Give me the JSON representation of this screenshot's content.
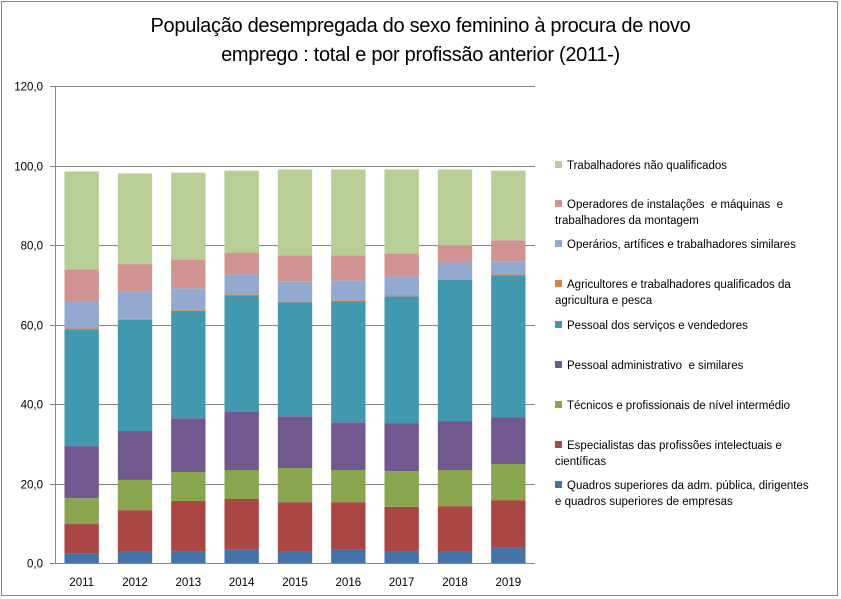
{
  "chart_data": {
    "type": "bar",
    "stacked": true,
    "title": "População desempregada do sexo feminino à procura de novo emprego : total e por profissão anterior (2011-)",
    "title_lines": [
      "População desempregada do sexo feminino à procura de novo",
      "emprego : total e por profissão anterior (2011-)"
    ],
    "xlabel": "",
    "ylabel": "",
    "ylim": [
      0,
      120
    ],
    "yticks": [
      0,
      20,
      40,
      60,
      80,
      100,
      120
    ],
    "ytick_labels": [
      "0,0",
      "20,0",
      "40,0",
      "60,0",
      "80,0",
      "100,0",
      "120,0"
    ],
    "grid": true,
    "legend_position": "right",
    "categories": [
      "2011",
      "2012",
      "2013",
      "2014",
      "2015",
      "2016",
      "2017",
      "2018",
      "2019"
    ],
    "series": [
      {
        "name": "Quadros superiores da adm. pública, dirigentes e quadros superiores de empresas",
        "legend_lines": [
          "Quadros superiores da adm. pública, dirigentes",
          "e quadros superiores de empresas"
        ],
        "color": "#4572A7",
        "values": [
          2.5,
          2.8,
          2.8,
          3.5,
          2.8,
          3.3,
          2.8,
          2.8,
          3.8
        ]
      },
      {
        "name": "Especialistas das profissões intelectuais e científicas",
        "legend_lines": [
          "Especialistas das profissões intelectuais e",
          "científicas"
        ],
        "color": "#AA4643",
        "values": [
          7.3,
          10.5,
          12.8,
          12.6,
          12.5,
          12.0,
          11.3,
          11.5,
          12.0
        ]
      },
      {
        "name": "Técnicos e profissionais de nível intermédio",
        "legend_lines": [
          "Técnicos e profissionais de nível intermédio"
        ],
        "color": "#89A54E",
        "values": [
          6.5,
          7.6,
          7.3,
          7.3,
          8.6,
          8.1,
          9.0,
          9.1,
          9.1
        ]
      },
      {
        "name": "Pessoal administrativo  e similares",
        "legend_lines": [
          "Pessoal administrativo  e similares"
        ],
        "color": "#71588F",
        "values": [
          13.1,
          12.3,
          13.5,
          14.6,
          13.0,
          12.0,
          12.1,
          12.3,
          11.8
        ]
      },
      {
        "name": "Pessoal dos serviços e vendedores",
        "legend_lines": [
          "Pessoal dos serviços e vendedores"
        ],
        "color": "#4198AF",
        "values": [
          29.4,
          28.0,
          27.0,
          29.4,
          28.7,
          30.5,
          31.9,
          35.5,
          35.7
        ]
      },
      {
        "name": "Agricultores e trabalhadores qualificados da agricultura e pesca",
        "legend_lines": [
          "Agricultores e trabalhadores qualificados da",
          "agricultura e pesca"
        ],
        "color": "#DB843D",
        "values": [
          0.2,
          0.2,
          0.2,
          0.2,
          0.2,
          0.2,
          0.2,
          0.2,
          0.2
        ]
      },
      {
        "name": "Operários, artífices e trabalhadores similares",
        "legend_lines": [
          "Operários, artífices e trabalhadores similares"
        ],
        "color": "#93A9CF",
        "values": [
          6.8,
          7.0,
          5.5,
          5.0,
          5.1,
          5.0,
          4.8,
          4.2,
          3.3
        ]
      },
      {
        "name": "Operadores de instalações e máquinas e trabalhadores da montagem",
        "legend_lines": [
          "Operadores de instalações  e máquinas  e",
          "trabalhadores da montagem"
        ],
        "color": "#D19392",
        "values": [
          8.1,
          6.8,
          7.3,
          5.5,
          6.5,
          6.3,
          5.8,
          4.3,
          5.3
        ]
      },
      {
        "name": "Trabalhadores não qualificados",
        "legend_lines": [
          "Trabalhadores não qualificados"
        ],
        "color": "#B9CD96",
        "values": [
          24.6,
          22.8,
          21.8,
          20.6,
          21.6,
          21.6,
          21.1,
          19.1,
          17.5
        ]
      }
    ]
  },
  "colors": {
    "frame": "#868686",
    "gridline": "#868686"
  }
}
